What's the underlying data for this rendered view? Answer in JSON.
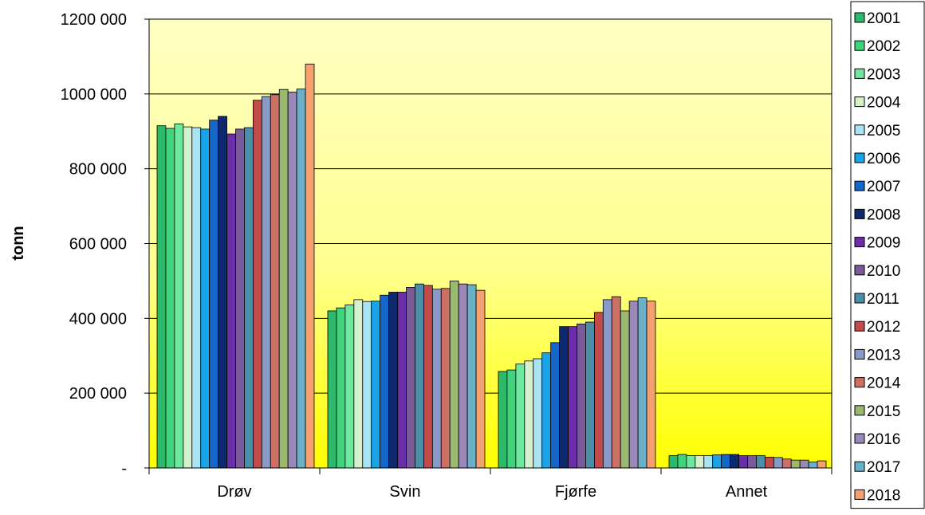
{
  "chart_data": {
    "type": "bar",
    "title": "",
    "xlabel": "",
    "ylabel": "tonn",
    "ylim": [
      0,
      1200000
    ],
    "yticks": [
      {
        "value": 0,
        "label": "-"
      },
      {
        "value": 200000,
        "label": "200 000"
      },
      {
        "value": 400000,
        "label": "400 000"
      },
      {
        "value": 600000,
        "label": "600 000"
      },
      {
        "value": 800000,
        "label": "800 000"
      },
      {
        "value": 1000000,
        "label": "1000 000"
      },
      {
        "value": 1200000,
        "label": "1200 000"
      }
    ],
    "grid": true,
    "legend_position": "right",
    "categories": [
      "Drøv",
      "Svin",
      "Fjørfe",
      "Annet"
    ],
    "series": [
      {
        "name": "2001",
        "color": "#2eb86a",
        "values": [
          915000,
          420000,
          258000,
          33000
        ]
      },
      {
        "name": "2002",
        "color": "#3fd47c",
        "values": [
          908000,
          428000,
          262000,
          36000
        ]
      },
      {
        "name": "2003",
        "color": "#6ee89e",
        "values": [
          920000,
          436000,
          278000,
          33000
        ]
      },
      {
        "name": "2004",
        "color": "#d4f0cc",
        "values": [
          912000,
          450000,
          286000,
          33000
        ]
      },
      {
        "name": "2005",
        "color": "#a8e4f4",
        "values": [
          910000,
          445000,
          292000,
          33000
        ]
      },
      {
        "name": "2006",
        "color": "#1aa3e6",
        "values": [
          906000,
          446000,
          308000,
          35000
        ]
      },
      {
        "name": "2007",
        "color": "#1466c8",
        "values": [
          930000,
          462000,
          335000,
          36000
        ]
      },
      {
        "name": "2008",
        "color": "#0e2a6e",
        "values": [
          940000,
          470000,
          378000,
          36000
        ]
      },
      {
        "name": "2009",
        "color": "#6a2fa8",
        "values": [
          893000,
          470000,
          378000,
          33000
        ]
      },
      {
        "name": "2010",
        "color": "#7a5a9a",
        "values": [
          906000,
          483000,
          385000,
          33000
        ]
      },
      {
        "name": "2011",
        "color": "#4a8ea8",
        "values": [
          910000,
          492000,
          390000,
          33000
        ]
      },
      {
        "name": "2012",
        "color": "#c24a4a",
        "values": [
          983000,
          488000,
          416000,
          29000
        ]
      },
      {
        "name": "2013",
        "color": "#8a9ac8",
        "values": [
          993000,
          478000,
          450000,
          28000
        ]
      },
      {
        "name": "2014",
        "color": "#cc7066",
        "values": [
          998000,
          480000,
          458000,
          24000
        ]
      },
      {
        "name": "2015",
        "color": "#9ab870",
        "values": [
          1012000,
          500000,
          420000,
          21000
        ]
      },
      {
        "name": "2016",
        "color": "#9a88b8",
        "values": [
          1005000,
          492000,
          446000,
          21000
        ]
      },
      {
        "name": "2017",
        "color": "#6ab0c8",
        "values": [
          1013000,
          490000,
          455000,
          16000
        ]
      },
      {
        "name": "2018",
        "color": "#f4a070",
        "values": [
          1080000,
          475000,
          446000,
          19000
        ]
      }
    ]
  }
}
